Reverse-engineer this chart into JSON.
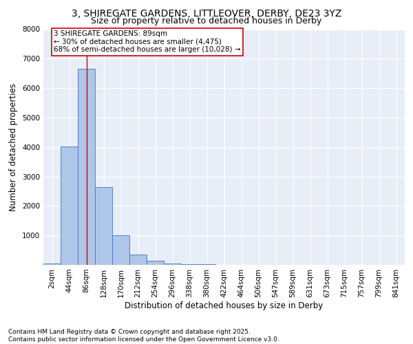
{
  "title1": "3, SHIREGATE GARDENS, LITTLEOVER, DERBY, DE23 3YZ",
  "title2": "Size of property relative to detached houses in Derby",
  "xlabel": "Distribution of detached houses by size in Derby",
  "ylabel": "Number of detached properties",
  "bin_labels": [
    "2sqm",
    "44sqm",
    "86sqm",
    "128sqm",
    "170sqm",
    "212sqm",
    "254sqm",
    "296sqm",
    "338sqm",
    "380sqm",
    "422sqm",
    "464sqm",
    "506sqm",
    "547sqm",
    "589sqm",
    "631sqm",
    "673sqm",
    "715sqm",
    "757sqm",
    "799sqm",
    "841sqm"
  ],
  "bar_values": [
    50,
    4020,
    6650,
    2650,
    1000,
    350,
    130,
    50,
    30,
    20,
    10,
    5,
    2,
    1,
    1,
    0,
    0,
    0,
    0,
    0,
    0
  ],
  "bar_color": "#aec6e8",
  "bar_edge_color": "#4472c4",
  "background_color": "#e8eef8",
  "grid_color": "#d0d8e8",
  "property_bin_index": 2,
  "annotation_title": "3 SHIREGATE GARDENS: 89sqm",
  "annotation_line1": "← 30% of detached houses are smaller (4,475)",
  "annotation_line2": "68% of semi-detached houses are larger (10,028) →",
  "vline_color": "#cc0000",
  "annotation_box_color": "#cc0000",
  "ylim": [
    0,
    8000
  ],
  "yticks": [
    0,
    1000,
    2000,
    3000,
    4000,
    5000,
    6000,
    7000,
    8000
  ],
  "footer_line1": "Contains HM Land Registry data © Crown copyright and database right 2025.",
  "footer_line2": "Contains public sector information licensed under the Open Government Licence v3.0.",
  "title_fontsize": 10,
  "subtitle_fontsize": 9,
  "axis_label_fontsize": 8.5,
  "tick_fontsize": 7.5,
  "annotation_fontsize": 7.5,
  "footer_fontsize": 6.5
}
